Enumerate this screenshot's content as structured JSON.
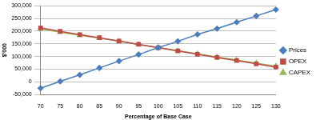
{
  "chart_data": {
    "type": "line",
    "x_label": "Percentage of Base Case",
    "y_label": "$'000",
    "categories": [
      "70",
      "75",
      "80",
      "85",
      "90",
      "95",
      "100",
      "105",
      "110",
      "115",
      "120",
      "125",
      "130"
    ],
    "series": [
      {
        "name": "Prices",
        "color": "#4a7ebb",
        "marker": "diamond",
        "line_style": "solid",
        "values": [
          -25000,
          2000,
          28000,
          55000,
          82000,
          108000,
          135000,
          160000,
          187000,
          210000,
          235000,
          260000,
          285000
        ]
      },
      {
        "name": "OPEX",
        "color": "#be4b48",
        "marker": "square",
        "line_style": "solid",
        "values": [
          213000,
          199000,
          186000,
          174000,
          161000,
          148000,
          135000,
          122000,
          109000,
          96000,
          84000,
          71000,
          58000
        ]
      },
      {
        "name": "CAPEX",
        "color": "#98b954",
        "marker": "triangle",
        "line_style": "solid",
        "values": [
          209000,
          196000,
          184000,
          172000,
          160000,
          147000,
          135000,
          123000,
          111000,
          98000,
          86000,
          74000,
          62000
        ]
      }
    ],
    "ylim": [
      -50000,
      300000
    ],
    "yticks": [
      {
        "value": -50000,
        "label": "-50,000"
      },
      0,
      {
        "value": 50000,
        "label": "50,000"
      },
      {
        "value": 100000,
        "label": "100,000"
      },
      {
        "value": 150000,
        "label": "150,000"
      },
      {
        "value": 200000,
        "label": "200,000"
      },
      {
        "value": 250000,
        "label": "250,000"
      },
      {
        "value": 300000,
        "label": "300,000"
      }
    ],
    "grid": true,
    "legend": "right"
  }
}
